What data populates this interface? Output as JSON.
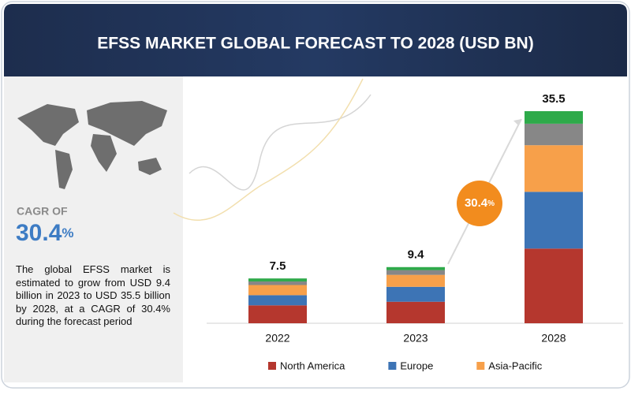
{
  "title": "EFSS MARKET GLOBAL FORECAST TO 2028 (USD BN)",
  "sidebar": {
    "cagr_label": "CAGR OF",
    "cagr_value": "30.4",
    "cagr_unit": "%",
    "description": "The global EFSS market is estimated to grow from USD 9.4 billion in 2023 to USD 35.5 billion by 2028, at a CAGR of 30.4% during the forecast period"
  },
  "chart_data": {
    "type": "stacked-bar",
    "categories": [
      "2022",
      "2023",
      "2028"
    ],
    "totals": [
      7.5,
      9.4,
      35.5
    ],
    "growth_badge": {
      "value": "30.4",
      "unit": "%"
    },
    "series": [
      {
        "name": "North America",
        "color": "#b5372e",
        "values": [
          3.0,
          3.6,
          12.5
        ]
      },
      {
        "name": "Europe",
        "color": "#3d74b5",
        "values": [
          1.7,
          2.5,
          9.5
        ]
      },
      {
        "name": "Asia-Pacific",
        "color": "#f7a04a",
        "values": [
          1.7,
          2.0,
          7.8
        ]
      },
      {
        "color": "#878787",
        "values": [
          0.6,
          0.8,
          3.6
        ]
      },
      {
        "color": "#2eaa4a",
        "values": [
          0.5,
          0.5,
          2.1
        ]
      }
    ]
  }
}
